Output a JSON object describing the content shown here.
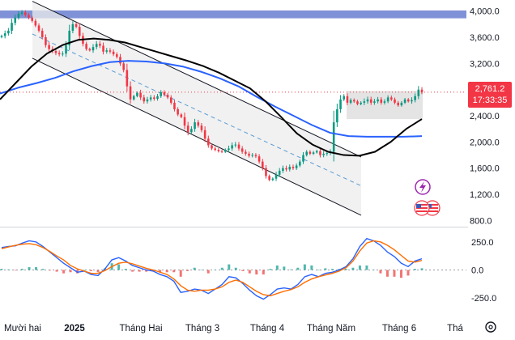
{
  "colors": {
    "up": "#089981",
    "down": "#f23645",
    "ma_fast": "#000000",
    "ma_slow": "#2962ff",
    "macd": "#2962ff",
    "signal": "#ff6d00",
    "resistance_band": "#6a7fd0",
    "price_tag": "#f23645",
    "event_icon": "#9c27b0"
  },
  "price_tag": {
    "price": "2,761.2",
    "countdown": "17:33:35"
  },
  "chart_data": [
    {
      "type": "candlestick",
      "title": "",
      "xlabel": "",
      "ylabel": "",
      "x_ticks": [
        "Mười hai",
        "2025",
        "Tháng Hai",
        "Tháng 3",
        "Tháng 4",
        "Tháng Năm",
        "Tháng 6",
        "Thá"
      ],
      "y_ticks": [
        "4,000.0",
        "3,600.0",
        "3,200.0",
        "2,800.0",
        "2,400.0",
        "2,000.0",
        "1,600.0",
        "1,200.0",
        "800.0"
      ],
      "y_tick_values": [
        4000,
        3600,
        3200,
        2800,
        2400,
        2000,
        1600,
        1200,
        800
      ],
      "ylim": [
        780,
        4120
      ],
      "last_price": 2761.2,
      "resistance_band": [
        3890,
        4010
      ],
      "series": [
        {
          "name": "",
          "kind": "close",
          "values": [
            3620,
            3660,
            3700,
            3820,
            3900,
            3960,
            3980,
            3940,
            3900,
            3850,
            3780,
            3700,
            3600,
            3480,
            3420,
            3390,
            3360,
            3340,
            3350,
            3480,
            3700,
            3800,
            3760,
            3620,
            3500,
            3420,
            3400,
            3450,
            3500,
            3470,
            3380,
            3400,
            3380,
            3340,
            3300,
            3200,
            3100,
            2850,
            2650,
            2700,
            2750,
            2680,
            2620,
            2650,
            2680,
            2660,
            2700,
            2760,
            2720,
            2680,
            2600,
            2500,
            2420,
            2380,
            2250,
            2150,
            2200,
            2300,
            2250,
            2180,
            2050,
            1950,
            1900,
            1880,
            1860,
            1850,
            1880,
            1900,
            1950,
            1960,
            1900,
            1850,
            1820,
            1790,
            1800,
            1780,
            1700,
            1600,
            1480,
            1420,
            1440,
            1500,
            1560,
            1600,
            1580,
            1620,
            1600,
            1640,
            1700,
            1800,
            1850,
            1820,
            1840,
            1860,
            1800,
            1820,
            1830,
            1850,
            2300,
            2500,
            2650,
            2700,
            2600,
            2640,
            2620,
            2580,
            2600,
            2620,
            2650,
            2600,
            2620,
            2650,
            2600,
            2620,
            2680,
            2650,
            2600,
            2560,
            2600,
            2650,
            2620,
            2640,
            2700,
            2800,
            2761.2
          ]
        },
        {
          "name": "",
          "kind": "moving_average_fast",
          "values": [
            2650,
            2900,
            3150,
            3350,
            3480,
            3560,
            3580,
            3560,
            3520,
            3450,
            3380,
            3310,
            3240,
            3160,
            3060,
            2940,
            2820,
            2620,
            2380,
            2130,
            1960,
            1850,
            1800,
            1790,
            1850,
            2000,
            2200,
            2350
          ]
        },
        {
          "name": "",
          "kind": "moving_average_slow",
          "values": [
            2740,
            2830,
            2900,
            2980,
            3080,
            3160,
            3220,
            3240,
            3230,
            3200,
            3150,
            3070,
            2970,
            2850,
            2690,
            2540,
            2400,
            2260,
            2140,
            2090,
            2080,
            2080,
            2080,
            2090
          ]
        },
        {
          "name": "",
          "kind": "trend_channel",
          "upper": [
            4150,
            1770
          ],
          "lower": [
            3280,
            880
          ],
          "mid": [
            3650,
            1330
          ]
        }
      ]
    },
    {
      "type": "line",
      "title": "",
      "y_ticks": [
        "250.0",
        "0.0",
        "-250.0"
      ],
      "y_tick_values": [
        250,
        0,
        -250
      ],
      "ylim": [
        -350,
        350
      ],
      "series": [
        {
          "name": "",
          "kind": "macd",
          "values": [
            200,
            210,
            215,
            240,
            260,
            250,
            210,
            160,
            110,
            60,
            20,
            -20,
            -10,
            -40,
            -50,
            10,
            90,
            110,
            80,
            40,
            20,
            0,
            -10,
            -40,
            -60,
            -100,
            -200,
            -190,
            -170,
            -180,
            -210,
            -170,
            -130,
            -60,
            -70,
            -120,
            -180,
            -230,
            -260,
            -220,
            -170,
            -160,
            -170,
            -130,
            -60,
            -40,
            -60,
            -30,
            -20,
            0,
            30,
            100,
            210,
            280,
            260,
            220,
            160,
            120,
            60,
            30,
            80,
            100
          ]
        },
        {
          "name": "",
          "kind": "signal",
          "values": [
            190,
            205,
            220,
            230,
            235,
            225,
            200,
            165,
            125,
            90,
            40,
            10,
            -10,
            -30,
            -30,
            -5,
            30,
            60,
            70,
            55,
            35,
            15,
            0,
            -20,
            -40,
            -80,
            -140,
            -180,
            -190,
            -180,
            -180,
            -170,
            -150,
            -110,
            -90,
            -110,
            -150,
            -190,
            -220,
            -230,
            -210,
            -190,
            -175,
            -150,
            -110,
            -80,
            -60,
            -45,
            -30,
            -10,
            20,
            80,
            170,
            240,
            260,
            250,
            220,
            180,
            130,
            80,
            70,
            85
          ]
        }
      ]
    }
  ]
}
